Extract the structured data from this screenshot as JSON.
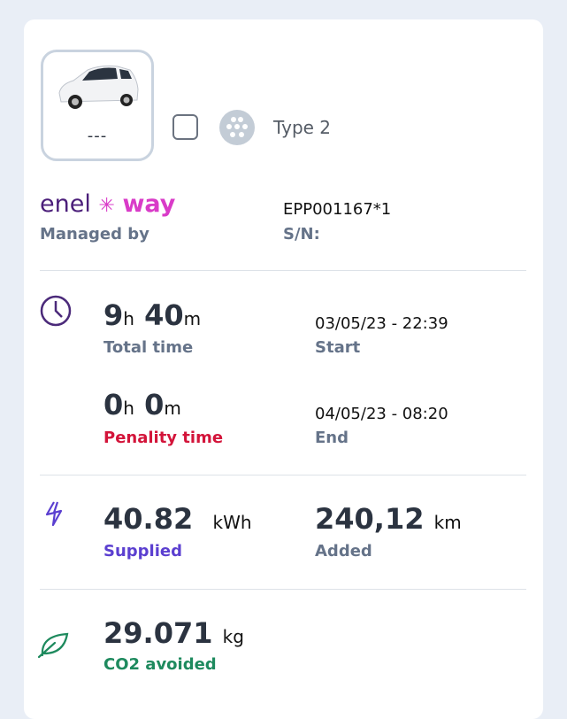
{
  "vehicle": {
    "name": "---",
    "icon": "car-image"
  },
  "connector": {
    "type": "Type 2",
    "icon": "type2-plug-icon"
  },
  "operator": {
    "logo_text_1": "enel",
    "logo_text_2": "way",
    "managed_label": "Managed by",
    "serial": "EPP001167*1",
    "serial_label": "S/N:"
  },
  "time": {
    "total_h": "9",
    "total_m": "40",
    "h_unit": "h",
    "m_unit": "m",
    "total_label": "Total time",
    "start": "03/05/23 - 22:39",
    "start_label": "Start",
    "penalty_h": "0",
    "penalty_m": "0",
    "penalty_label": "Penality time",
    "end": "04/05/23 - 08:20",
    "end_label": "End"
  },
  "energy": {
    "value": "40.82",
    "unit": "kWh",
    "label": "Supplied",
    "km": "240,12",
    "km_unit": "km",
    "km_label": "Added"
  },
  "co2": {
    "value": "29.071",
    "unit": "kg",
    "label": "CO2 avoided"
  },
  "colors": {
    "purple": "#5b3fd0",
    "red": "#d3143a",
    "green": "#1e8a5e",
    "enel": "#4b1e7a",
    "way": "#d93bc8"
  }
}
